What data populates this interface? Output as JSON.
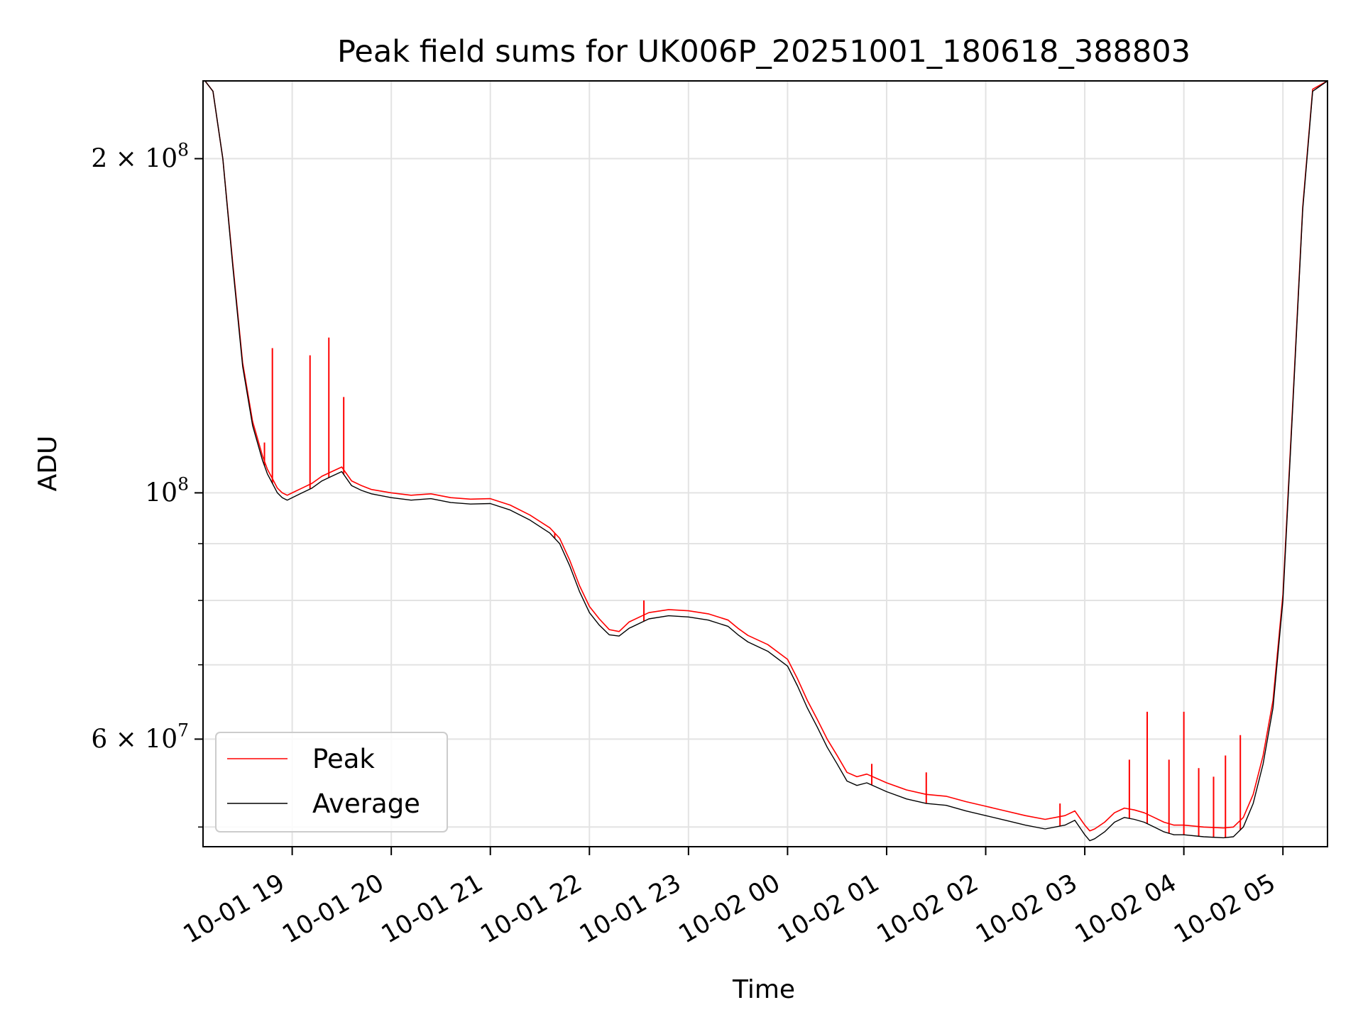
{
  "chart_data": {
    "type": "line",
    "title": "Peak field sums for UK006P_20251001_180618_388803",
    "xlabel": "Time",
    "ylabel": "ADU",
    "yscale": "log",
    "grid": true,
    "xlim_hours": [
      18.1,
      29.45
    ],
    "ylim": [
      48000000,
      235000000
    ],
    "x_ticks": [
      {
        "label": "10-01 19",
        "hour": 19
      },
      {
        "label": "10-01 20",
        "hour": 20
      },
      {
        "label": "10-01 21",
        "hour": 21
      },
      {
        "label": "10-01 22",
        "hour": 22
      },
      {
        "label": "10-01 23",
        "hour": 23
      },
      {
        "label": "10-02 00",
        "hour": 24
      },
      {
        "label": "10-02 01",
        "hour": 25
      },
      {
        "label": "10-02 02",
        "hour": 26
      },
      {
        "label": "10-02 03",
        "hour": 27
      },
      {
        "label": "10-02 04",
        "hour": 28
      },
      {
        "label": "10-02 05",
        "hour": 29
      }
    ],
    "y_ticks": [
      {
        "value": 200000000,
        "base": "2 × 10",
        "exp": "8"
      },
      {
        "value": 100000000,
        "base": "10",
        "exp": "8"
      },
      {
        "value": 60000000,
        "base": "6 × 10",
        "exp": "7"
      }
    ],
    "y_minor_ticks": [
      50000000,
      70000000,
      80000000,
      90000000
    ],
    "legend": {
      "position": "lower-left",
      "entries": [
        "Peak",
        "Average"
      ]
    },
    "series": [
      {
        "name": "Average",
        "color": "#000000",
        "x": [
          18.12,
          18.2,
          18.3,
          18.4,
          18.5,
          18.6,
          18.7,
          18.75,
          18.8,
          18.85,
          18.9,
          18.95,
          19.0,
          19.1,
          19.2,
          19.3,
          19.4,
          19.5,
          19.6,
          19.7,
          19.8,
          20.0,
          20.2,
          20.4,
          20.6,
          20.8,
          21.0,
          21.2,
          21.4,
          21.6,
          21.7,
          21.8,
          21.9,
          22.0,
          22.1,
          22.2,
          22.3,
          22.4,
          22.6,
          22.8,
          23.0,
          23.2,
          23.4,
          23.5,
          23.6,
          23.8,
          24.0,
          24.1,
          24.2,
          24.3,
          24.4,
          24.5,
          24.6,
          24.7,
          24.8,
          25.0,
          25.2,
          25.4,
          25.6,
          25.8,
          26.0,
          26.2,
          26.4,
          26.6,
          26.8,
          26.9,
          27.0,
          27.05,
          27.1,
          27.2,
          27.3,
          27.4,
          27.5,
          27.6,
          27.7,
          27.8,
          27.9,
          28.0,
          28.2,
          28.4,
          28.5,
          28.6,
          28.7,
          28.8,
          28.9,
          29.0,
          29.1,
          29.2,
          29.3,
          29.45
        ],
        "y": [
          235000000,
          230000000,
          200000000,
          160000000,
          130000000,
          115000000,
          107000000,
          104000000,
          102000000,
          100000000,
          99000000,
          98500000,
          99000000,
          100000000,
          101000000,
          102500000,
          103500000,
          104500000,
          101500000,
          100500000,
          99800000,
          99000000,
          98500000,
          98800000,
          98000000,
          97700000,
          97800000,
          96500000,
          94500000,
          92000000,
          90000000,
          86000000,
          81500000,
          78000000,
          76000000,
          74500000,
          74300000,
          75500000,
          77000000,
          77500000,
          77300000,
          76800000,
          75800000,
          74500000,
          73400000,
          72000000,
          69800000,
          67000000,
          64000000,
          61500000,
          59000000,
          57000000,
          55000000,
          54500000,
          54800000,
          53800000,
          53000000,
          52500000,
          52300000,
          51700000,
          51200000,
          50700000,
          50200000,
          49800000,
          50200000,
          50700000,
          49200000,
          48600000,
          48800000,
          49500000,
          50500000,
          51000000,
          50800000,
          50500000,
          50000000,
          49500000,
          49200000,
          49200000,
          49000000,
          48900000,
          49000000,
          50000000,
          52500000,
          57000000,
          64000000,
          80000000,
          120000000,
          180000000,
          230000000,
          235000000
        ]
      },
      {
        "name": "Peak",
        "color": "#ff0000",
        "x": [
          18.12,
          18.2,
          18.3,
          18.4,
          18.5,
          18.6,
          18.7,
          18.75,
          18.8,
          18.85,
          18.9,
          18.95,
          19.0,
          19.1,
          19.2,
          19.3,
          19.4,
          19.5,
          19.6,
          19.7,
          19.8,
          20.0,
          20.2,
          20.4,
          20.6,
          20.8,
          21.0,
          21.2,
          21.4,
          21.6,
          21.7,
          21.8,
          21.9,
          22.0,
          22.1,
          22.2,
          22.3,
          22.4,
          22.6,
          22.8,
          23.0,
          23.2,
          23.4,
          23.5,
          23.6,
          23.8,
          24.0,
          24.1,
          24.2,
          24.3,
          24.4,
          24.5,
          24.6,
          24.7,
          24.8,
          25.0,
          25.2,
          25.4,
          25.6,
          25.8,
          26.0,
          26.2,
          26.4,
          26.6,
          26.8,
          26.9,
          27.0,
          27.05,
          27.1,
          27.2,
          27.3,
          27.4,
          27.5,
          27.6,
          27.7,
          27.8,
          27.9,
          28.0,
          28.2,
          28.4,
          28.5,
          28.6,
          28.7,
          28.8,
          28.9,
          29.0,
          29.1,
          29.2,
          29.3,
          29.45
        ],
        "y": [
          235000000,
          230000000,
          200000000,
          161000000,
          131000000,
          116000000,
          108000000,
          105000000,
          103000000,
          101000000,
          100000000,
          99500000,
          100000000,
          101000000,
          102000000,
          103500000,
          104500000,
          105500000,
          102500000,
          101500000,
          100700000,
          100000000,
          99500000,
          99800000,
          99000000,
          98700000,
          98800000,
          97500000,
          95500000,
          93000000,
          91000000,
          87000000,
          82500000,
          79000000,
          77000000,
          75300000,
          75000000,
          76500000,
          78000000,
          78500000,
          78300000,
          77800000,
          76800000,
          75500000,
          74400000,
          73000000,
          70800000,
          68000000,
          65000000,
          62500000,
          60000000,
          58000000,
          56000000,
          55500000,
          55800000,
          54800000,
          54000000,
          53500000,
          53300000,
          52700000,
          52200000,
          51700000,
          51200000,
          50800000,
          51200000,
          51700000,
          50200000,
          49600000,
          49800000,
          50500000,
          51500000,
          52000000,
          51800000,
          51500000,
          51000000,
          50500000,
          50200000,
          50200000,
          50000000,
          49900000,
          50000000,
          51000000,
          53500000,
          58000000,
          65000000,
          81000000,
          121000000,
          181000000,
          231000000,
          235000000
        ],
        "spikes": [
          {
            "hour": 18.72,
            "value": 111000000
          },
          {
            "hour": 18.8,
            "value": 135000000
          },
          {
            "hour": 19.18,
            "value": 133000000
          },
          {
            "hour": 19.37,
            "value": 138000000
          },
          {
            "hour": 19.52,
            "value": 122000000
          },
          {
            "hour": 21.65,
            "value": 92000000
          },
          {
            "hour": 22.55,
            "value": 80000000
          },
          {
            "hour": 24.85,
            "value": 57000000
          },
          {
            "hour": 25.4,
            "value": 56000000
          },
          {
            "hour": 26.75,
            "value": 52500000
          },
          {
            "hour": 27.45,
            "value": 57500000
          },
          {
            "hour": 27.63,
            "value": 63500000
          },
          {
            "hour": 27.85,
            "value": 57500000
          },
          {
            "hour": 28.0,
            "value": 63500000
          },
          {
            "hour": 28.15,
            "value": 56500000
          },
          {
            "hour": 28.3,
            "value": 55500000
          },
          {
            "hour": 28.42,
            "value": 58000000
          },
          {
            "hour": 28.57,
            "value": 60500000
          }
        ]
      }
    ]
  }
}
